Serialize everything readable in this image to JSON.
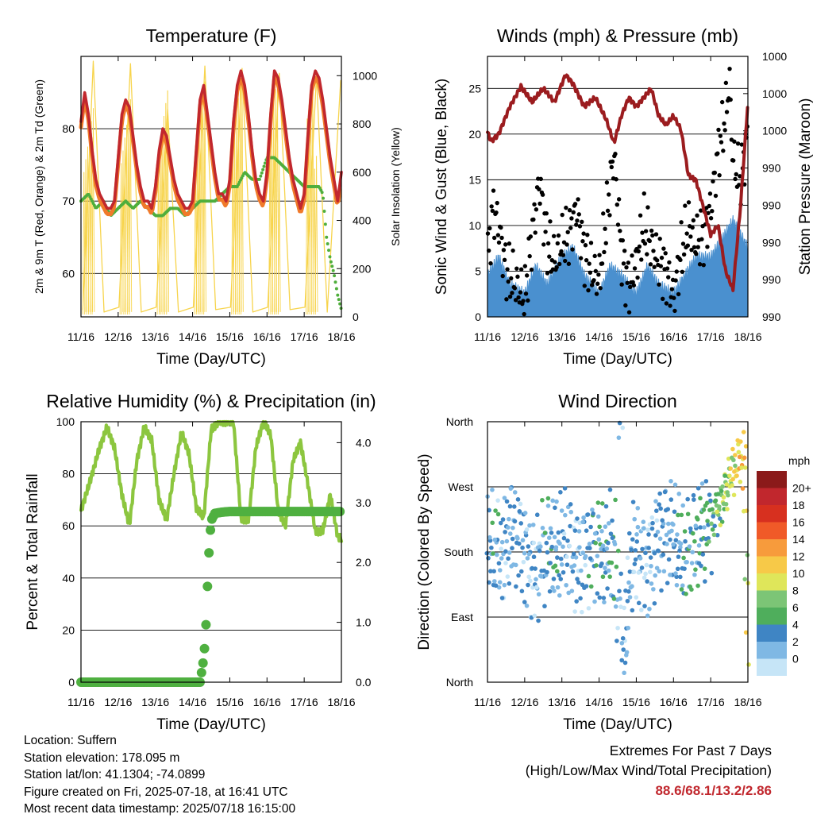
{
  "colors": {
    "temp_2m": "#c1272d",
    "temp_9m": "#f07a2a",
    "dewpoint": "#4fae3c",
    "solar": "#f7d44c",
    "wind": "#4a90cf",
    "gust": "#000000",
    "pressure": "#9b1c1f",
    "rh": "#8cc63f",
    "precip": "#4fb040",
    "extremes_values": "#c1272d"
  },
  "x_ticks": [
    "11/16",
    "12/16",
    "13/16",
    "14/16",
    "15/16",
    "16/16",
    "17/16",
    "18/16"
  ],
  "chart_data": [
    {
      "type": "line",
      "title": "Temperature (F)",
      "xlabel": "Time (Day/UTC)",
      "ylabel_left": "2m & 9m T (Red, Orange) & 2m Td (Green)",
      "ylabel_right": "Solar Insolation (Yellow)",
      "ylim_left": [
        54,
        90
      ],
      "yticks_left": [
        60,
        70,
        80
      ],
      "ylim_right": [
        0,
        1080
      ],
      "yticks_right": [
        0,
        200,
        400,
        600,
        800,
        1000
      ],
      "grid": "horizontal",
      "series": [
        {
          "name": "2m T",
          "style": "line",
          "x": [
            0,
            0.1,
            0.2,
            0.3,
            0.4,
            0.5,
            0.6,
            0.7,
            0.8,
            0.9,
            1.0,
            1.1,
            1.2,
            1.3,
            1.4,
            1.5,
            1.6,
            1.7,
            1.8,
            1.9,
            2.0,
            2.1,
            2.2,
            2.3,
            2.4,
            2.5,
            2.6,
            2.7,
            2.8,
            2.9,
            3.0,
            3.1,
            3.2,
            3.3,
            3.4,
            3.5,
            3.6,
            3.7,
            3.8,
            3.9,
            4.0,
            4.1,
            4.2,
            4.3,
            4.4,
            4.5,
            4.6,
            4.7,
            4.8,
            4.9,
            5.0,
            5.1,
            5.2,
            5.3,
            5.4,
            5.5,
            5.6,
            5.7,
            5.8,
            5.9,
            6.0,
            6.1,
            6.2,
            6.3,
            6.4,
            6.5,
            6.6,
            6.7,
            6.8,
            6.9,
            7.0
          ],
          "values": [
            81,
            85,
            82,
            77,
            73,
            71,
            70,
            69,
            69,
            70,
            76,
            82,
            84,
            83,
            79,
            75,
            72,
            70,
            70,
            69,
            72,
            77,
            80,
            79,
            76,
            73,
            71,
            70,
            69,
            69,
            70,
            77,
            84,
            86,
            82,
            78,
            74,
            71,
            71,
            70,
            73,
            81,
            86,
            88,
            86,
            82,
            77,
            73,
            71,
            70,
            74,
            82,
            88,
            87,
            84,
            80,
            76,
            73,
            71,
            69,
            71,
            79,
            86,
            88,
            87,
            84,
            80,
            76,
            73,
            70,
            74
          ]
        },
        {
          "name": "9m T",
          "style": "line",
          "x": [
            0,
            0.5,
            1.0,
            1.3,
            1.5,
            2.0,
            2.3,
            2.5,
            3.0,
            3.3,
            3.5,
            4.0,
            4.3,
            4.5,
            5.0,
            5.3,
            5.5,
            6.0,
            6.3,
            6.5,
            7.0
          ],
          "values": [
            80,
            70,
            75,
            82,
            74,
            71,
            78,
            72,
            69,
            84,
            76,
            72,
            86,
            80,
            73,
            86,
            78,
            70,
            86,
            78,
            73
          ]
        },
        {
          "name": "2m Td",
          "style": "dots",
          "x": [
            0,
            0.2,
            0.4,
            0.6,
            0.8,
            1.0,
            1.2,
            1.4,
            1.6,
            1.8,
            2.0,
            2.2,
            2.4,
            2.6,
            2.8,
            3.0,
            3.2,
            3.4,
            3.6,
            3.8,
            4.0,
            4.2,
            4.4,
            4.6,
            4.8,
            5.0,
            5.2,
            5.4,
            5.6,
            5.8,
            6.0,
            6.2,
            6.4,
            6.5,
            6.6,
            6.7,
            6.8,
            6.9,
            7.0
          ],
          "values": [
            70,
            71,
            69,
            70,
            68,
            69,
            70,
            69,
            70,
            69,
            68,
            68,
            69,
            69,
            68,
            69,
            70,
            70,
            70,
            71,
            72,
            72,
            74,
            73,
            73,
            76,
            76,
            75,
            74,
            73,
            72,
            72,
            72,
            71,
            65,
            62,
            60,
            57,
            55
          ]
        },
        {
          "name": "Solar Insolation",
          "style": "spikes",
          "axis": "right",
          "x": [
            0.05,
            0.33,
            0.62,
            1.02,
            1.33,
            1.62,
            2.02,
            2.33,
            2.62,
            3.02,
            3.33,
            3.62,
            4.02,
            4.33,
            4.62,
            5.02,
            5.33,
            5.62,
            6.02,
            6.33,
            6.62,
            6.98
          ],
          "values": [
            30,
            1060,
            20,
            40,
            1050,
            20,
            40,
            860,
            20,
            40,
            1040,
            30,
            40,
            1030,
            20,
            40,
            1010,
            30,
            40,
            1000,
            20,
            980
          ]
        }
      ]
    },
    {
      "type": "line",
      "title": "Winds (mph) & Pressure (mb)",
      "xlabel": "Time (Day/UTC)",
      "ylabel_left": "Sonic Wind & Gust (Blue, Black)",
      "ylabel_right": "Station Pressure (Maroon)",
      "ylim_left": [
        0,
        28.5
      ],
      "yticks_left": [
        0,
        5,
        10,
        15,
        20,
        25
      ],
      "ytick_labels_right": [
        "990",
        "990",
        "990",
        "990",
        "990",
        "1000",
        "1000",
        "1000"
      ],
      "grid": "horizontal",
      "series": [
        {
          "name": "Sonic Wind",
          "style": "area",
          "x": [
            0,
            0.3,
            0.6,
            1.0,
            1.3,
            1.6,
            2.0,
            2.3,
            2.6,
            3.0,
            3.3,
            3.6,
            4.0,
            4.3,
            4.6,
            5.0,
            5.3,
            5.6,
            6.0,
            6.3,
            6.6,
            7.0
          ],
          "values": [
            3,
            5,
            2,
            1,
            4,
            2,
            5,
            6,
            3,
            1,
            4,
            3,
            1,
            4,
            2,
            1,
            3,
            5,
            5,
            7,
            9,
            6
          ]
        },
        {
          "name": "Gust",
          "style": "dots",
          "x": [
            0,
            0.15,
            0.3,
            0.5,
            0.7,
            1.0,
            1.2,
            1.4,
            1.6,
            1.8,
            2.0,
            2.2,
            2.4,
            2.6,
            2.8,
            3.0,
            3.2,
            3.4,
            3.6,
            3.8,
            4.0,
            4.2,
            4.4,
            4.6,
            4.8,
            5.0,
            5.2,
            5.4,
            5.6,
            5.8,
            6.0,
            6.2,
            6.4,
            6.5,
            6.6,
            6.8,
            7.0
          ],
          "values": [
            6,
            12,
            10,
            5,
            4,
            2,
            9,
            15,
            8,
            6,
            8,
            9,
            12,
            7,
            5,
            4,
            11,
            18,
            7,
            3,
            6,
            10,
            8,
            6,
            5,
            2,
            7,
            10,
            8,
            9,
            12,
            18,
            22,
            26,
            17,
            15,
            20
          ]
        },
        {
          "name": "Station Pressure",
          "style": "line",
          "x": [
            0,
            0.1,
            0.3,
            0.6,
            0.9,
            1.2,
            1.5,
            1.8,
            2.1,
            2.3,
            2.6,
            2.9,
            3.2,
            3.4,
            3.6,
            3.8,
            4.0,
            4.2,
            4.4,
            4.6,
            4.8,
            5.0,
            5.2,
            5.4,
            5.6,
            5.8,
            6.0,
            6.2,
            6.4,
            6.6,
            6.8,
            7.0
          ],
          "values": [
            20.2,
            19.2,
            20,
            23,
            25.2,
            23.5,
            25,
            23.5,
            26.5,
            25.5,
            23,
            24,
            21.5,
            19,
            22,
            24,
            23,
            24,
            25,
            22,
            21,
            22,
            20.5,
            15.5,
            15,
            12,
            9,
            10,
            5,
            3,
            12,
            23.5
          ]
        }
      ]
    },
    {
      "type": "line",
      "title": "Relative Humidity (%) & Precipitation (in)",
      "xlabel": "Time (Day/UTC)",
      "ylabel": "Percent & Total Rainfall",
      "ylim_left": [
        0,
        100
      ],
      "yticks_left": [
        0,
        20,
        40,
        60,
        80,
        100
      ],
      "ylim_right": [
        0,
        4.35
      ],
      "yticks_right": [
        "0.0",
        "1.0",
        "2.0",
        "3.0",
        "4.0"
      ],
      "grid": "horizontal",
      "series": [
        {
          "name": "Relative Humidity",
          "style": "line",
          "x": [
            0,
            0.2,
            0.5,
            0.7,
            0.9,
            1.1,
            1.3,
            1.5,
            1.7,
            1.9,
            2.1,
            2.3,
            2.5,
            2.7,
            2.9,
            3.1,
            3.3,
            3.5,
            3.7,
            3.9,
            4.1,
            4.3,
            4.5,
            4.7,
            4.9,
            5.1,
            5.3,
            5.5,
            5.7,
            5.9,
            6.1,
            6.3,
            6.5,
            6.7,
            6.9,
            7.0
          ],
          "values": [
            66,
            75,
            90,
            98,
            90,
            72,
            60,
            85,
            98,
            93,
            70,
            62,
            80,
            96,
            88,
            67,
            63,
            97,
            100,
            100,
            100,
            63,
            62,
            90,
            100,
            95,
            66,
            60,
            85,
            92,
            76,
            58,
            58,
            72,
            56,
            55
          ]
        },
        {
          "name": "Total Rainfall",
          "style": "dots",
          "axis": "right",
          "x": [
            0,
            0.5,
            1.0,
            1.5,
            2.0,
            2.5,
            3.0,
            3.2,
            3.3,
            3.35,
            3.4,
            3.45,
            3.5,
            3.6,
            3.8,
            4.0,
            4.5,
            5.0,
            5.5,
            6.0,
            6.5,
            7.0
          ],
          "values": [
            0,
            0,
            0,
            0,
            0,
            0,
            0,
            0,
            0.4,
            0.8,
            1.6,
            2.3,
            2.7,
            2.82,
            2.84,
            2.85,
            2.85,
            2.85,
            2.85,
            2.85,
            2.85,
            2.85
          ]
        }
      ]
    },
    {
      "type": "scatter",
      "title": "Wind Direction",
      "xlabel": "Time (Day/UTC)",
      "ylabel": "Direction (Colored By Speed)",
      "ytick_labels": [
        "North",
        "East",
        "South",
        "West",
        "North"
      ],
      "colorbar": {
        "title": "mph",
        "labels": [
          "20+",
          "18",
          "16",
          "14",
          "12",
          "10",
          "8",
          "6",
          "4",
          "2",
          "0"
        ],
        "colors": [
          "#8b1a1a",
          "#c1272d",
          "#d7301f",
          "#f05a28",
          "#f79b3c",
          "#f7c948",
          "#dfe65a",
          "#7cc576",
          "#4fae5c",
          "#3f85c4",
          "#7fb8e4",
          "#c6e5f7"
        ]
      },
      "series": [
        {
          "name": "Direction",
          "x": [
            0,
            0.2,
            0.4,
            0.6,
            0.9,
            1.1,
            1.3,
            1.6,
            1.9,
            2.1,
            2.4,
            2.7,
            2.9,
            3.2,
            3.4,
            3.6,
            3.9,
            4.1,
            4.3,
            4.6,
            4.9,
            5.1,
            5.3,
            5.6,
            5.9,
            6.1,
            6.3,
            6.5,
            6.7,
            6.9,
            7.0
          ],
          "values": [
            180,
            190,
            170,
            210,
            200,
            160,
            150,
            190,
            175,
            200,
            165,
            180,
            190,
            170,
            200,
            20,
            180,
            175,
            160,
            200,
            210,
            190,
            170,
            200,
            215,
            230,
            250,
            280,
            300,
            320,
            10
          ],
          "speeds": [
            3,
            4,
            2,
            3,
            3,
            2,
            2,
            4,
            3,
            3,
            2,
            3,
            4,
            3,
            5,
            2,
            3,
            2,
            2,
            3,
            3,
            3,
            4,
            4,
            5,
            6,
            8,
            9,
            11,
            12,
            9
          ]
        }
      ]
    }
  ],
  "info": {
    "location": "Location: Suffern",
    "elevation": "Station elevation: 178.095 m",
    "latlon": "Station lat/lon: 41.1304; -74.0899",
    "created": "Figure created on Fri, 2025-07-18, at 16:41 UTC",
    "latest": "Most recent data timestamp: 2025/07/18 16:15:00"
  },
  "extremes": {
    "title": "Extremes For Past 7 Days",
    "subtitle": "(High/Low/Max Wind/Total Precipitation)",
    "values": "88.6/68.1/13.2/2.86"
  }
}
